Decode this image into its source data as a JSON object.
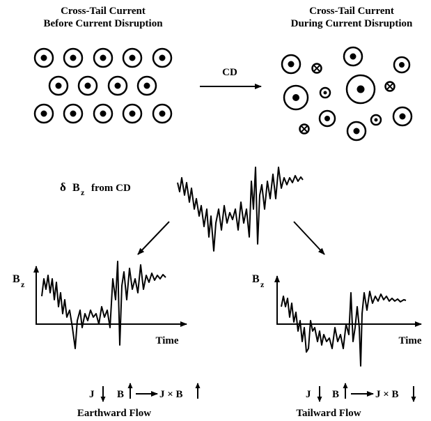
{
  "left_panel": {
    "title": "Cross-Tail Current",
    "subtitle": "Before Current Disruption"
  },
  "right_panel": {
    "title": "Cross-Tail Current",
    "subtitle": "During Current Disruption"
  },
  "arrow_label": "CD",
  "center": {
    "symbol": "δ",
    "variable": "B",
    "subscript": "z",
    "suffix": "from CD"
  },
  "plots": [
    {
      "y_label": "B",
      "y_subscript": "z",
      "x_label": "Time",
      "j": "J",
      "b": "B",
      "jxb": "J × B",
      "flow": "Earthward Flow"
    },
    {
      "y_label": "B",
      "y_subscript": "z",
      "x_label": "Time",
      "j": "J",
      "b": "B",
      "jxb": "J × B",
      "flow": "Tailward Flow"
    }
  ]
}
